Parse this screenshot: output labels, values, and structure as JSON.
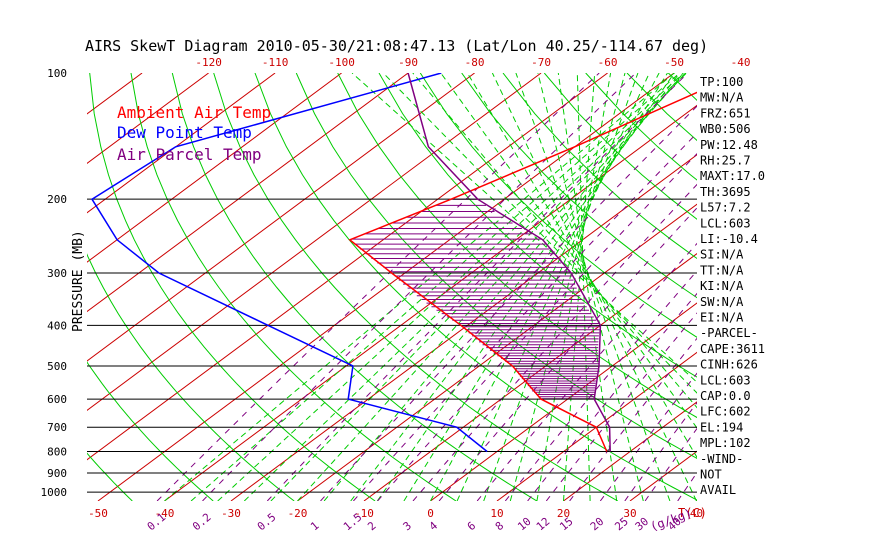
{
  "chart_data": {
    "type": "line",
    "title": "AIRS SkewT Diagram 2010-05-30/21:08:47.13 (Lat/Lon 40.25/-114.67 deg)",
    "ylabel": "PRESSURE (MB)",
    "xlabel_bottom_right": "T(C)",
    "mixing_ratio_unit": "(g/kg)",
    "pressure_ticks": [
      "100",
      "200",
      "300",
      "400",
      "500",
      "600",
      "700",
      "800",
      "900",
      "1000"
    ],
    "top_temp_ticks": [
      "-120",
      "-110",
      "-100",
      "-90",
      "-80",
      "-70",
      "-60",
      "-50",
      "-40"
    ],
    "bottom_temp_ticks": [
      "-50",
      "-40",
      "-30",
      "-20",
      "-10",
      "0",
      "10",
      "20",
      "30",
      "40"
    ],
    "mixing_ratio_ticks": [
      "0.1",
      "0.2",
      "0.5",
      "1",
      "1.5",
      "2",
      "3",
      "4",
      "6",
      "8",
      "10",
      "12",
      "15",
      "20",
      "25",
      "30",
      "40"
    ],
    "legend": [
      {
        "label": "Ambient Air Temp",
        "color": "#ff0000"
      },
      {
        "label": "Dew Point Temp",
        "color": "#0000ff"
      },
      {
        "label": "Air Parcel Temp",
        "color": "#800080"
      }
    ],
    "series": [
      {
        "name": "Ambient Air Temp",
        "color": "#ff0000",
        "points": [
          [
            100,
            -40
          ],
          [
            150,
            -50
          ],
          [
            200,
            -58
          ],
          [
            250,
            -65
          ],
          [
            300,
            -52
          ],
          [
            400,
            -31
          ],
          [
            500,
            -15
          ],
          [
            600,
            -4
          ],
          [
            700,
            10
          ],
          [
            800,
            16.5
          ]
        ]
      },
      {
        "name": "Dew Point Temp",
        "color": "#0000ff",
        "points": [
          [
            100,
            -85
          ],
          [
            150,
            -110
          ],
          [
            200,
            -112
          ],
          [
            250,
            -100
          ],
          [
            300,
            -87
          ],
          [
            400,
            -60
          ],
          [
            500,
            -39
          ],
          [
            600,
            -33
          ],
          [
            700,
            -11
          ],
          [
            800,
            -1.5
          ]
        ]
      },
      {
        "name": "Air Parcel Temp",
        "color": "#800080",
        "points": [
          [
            100,
            -90
          ],
          [
            150,
            -72
          ],
          [
            200,
            -54
          ],
          [
            250,
            -36
          ],
          [
            300,
            -25
          ],
          [
            400,
            -10
          ],
          [
            500,
            -2
          ],
          [
            600,
            4
          ],
          [
            700,
            12
          ],
          [
            800,
            17
          ]
        ]
      }
    ],
    "indices": [
      "TP:100",
      "MW:N/A",
      "FRZ:651",
      "WB0:506",
      "PW:12.48",
      "RH:25.7",
      "MAXT:17.0",
      "TH:3695",
      "L57:7.2",
      "LCL:603",
      "LI:-10.4",
      "SI:N/A",
      "TT:N/A",
      "KI:N/A",
      "SW:N/A",
      "EI:N/A",
      "-PARCEL-",
      "CAPE:3611",
      "CINH:626",
      "LCL:603",
      "CAP:0.0",
      "LFC:602",
      "EL:194",
      "MPL:102",
      "-WIND-",
      "NOT",
      "AVAIL"
    ],
    "colors": {
      "dry_adiabat": "#00cc00",
      "moist_adiabat": "#00cc00",
      "mixing_ratio": "#800080",
      "isotherm": "#cc0000",
      "isobar": "#000000",
      "hatch": "#800080"
    }
  }
}
